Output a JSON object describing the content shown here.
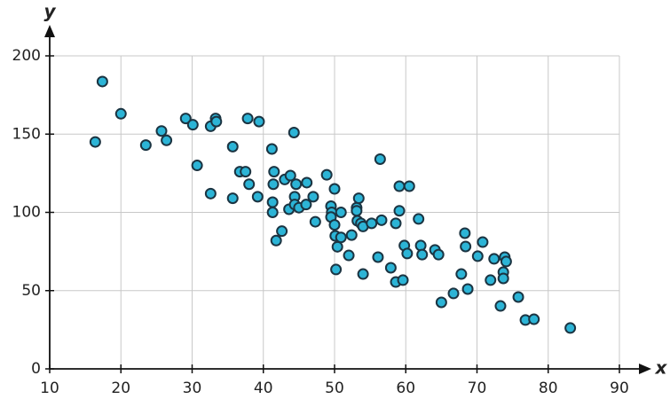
{
  "chart_data": {
    "type": "scatter",
    "x_label": "x",
    "y_label": "y",
    "xlim": [
      10,
      90
    ],
    "ylim": [
      0,
      200
    ],
    "xticks": [
      10,
      20,
      30,
      40,
      50,
      60,
      70,
      80,
      90
    ],
    "yticks": [
      0,
      50,
      100,
      150,
      200
    ],
    "grid": true,
    "color": "#2cb4d6",
    "x": [
      16.4,
      17.4,
      20.0,
      23.5,
      25.7,
      26.4,
      29.1,
      30.1,
      30.7,
      32.6,
      33.3,
      33.4,
      32.6,
      35.7,
      35.7,
      36.7,
      37.5,
      37.8,
      38.0,
      39.4,
      39.2,
      41.2,
      41.5,
      41.4,
      41.3,
      41.3,
      41.8,
      42.6,
      43.0,
      43.8,
      44.3,
      44.4,
      44.6,
      43.6,
      44.4,
      45.0,
      46.0,
      46.1,
      47.0,
      47.3,
      48.9,
      49.5,
      49.6,
      49.5,
      50.0,
      50.0,
      50.1,
      50.4,
      50.2,
      50.9,
      50.9,
      52.0,
      52.4,
      53.1,
      53.1,
      53.2,
      53.4,
      53.7,
      54.0,
      54.0,
      55.2,
      56.1,
      56.4,
      56.6,
      57.9,
      58.6,
      58.6,
      59.1,
      59.1,
      59.6,
      59.8,
      60.2,
      60.5,
      61.8,
      62.1,
      62.3,
      64.1,
      64.6,
      65.0,
      66.7,
      67.8,
      68.3,
      68.4,
      68.7,
      70.1,
      70.8,
      71.9,
      72.4,
      73.3,
      73.7,
      73.7,
      73.9,
      74.1,
      75.8,
      76.8,
      78.0,
      83.1
    ],
    "values": [
      145,
      183.6,
      163,
      143,
      152,
      146,
      160,
      156,
      130,
      155,
      160,
      158,
      112,
      142,
      109,
      126,
      126,
      160,
      118,
      158,
      110,
      140.5,
      126,
      118,
      106.5,
      100,
      82,
      88,
      121,
      123.5,
      151,
      110,
      118,
      102,
      105,
      103,
      105,
      119,
      110,
      94,
      124,
      104,
      100,
      97,
      115,
      92,
      85,
      78,
      63.5,
      100,
      84,
      72.5,
      85.5,
      103,
      101,
      94.6,
      109,
      93,
      91,
      60.6,
      93,
      71.4,
      134,
      95,
      64.6,
      93,
      55.5,
      101,
      116.7,
      56.7,
      78.8,
      73.7,
      116.7,
      95.8,
      78.8,
      73,
      76,
      73,
      42.5,
      48.2,
      60.6,
      86.7,
      78.2,
      51,
      72,
      81,
      56.7,
      70.3,
      40.2,
      61.8,
      57.8,
      71.4,
      68.6,
      45.9,
      31.2,
      31.7,
      26.1
    ]
  }
}
